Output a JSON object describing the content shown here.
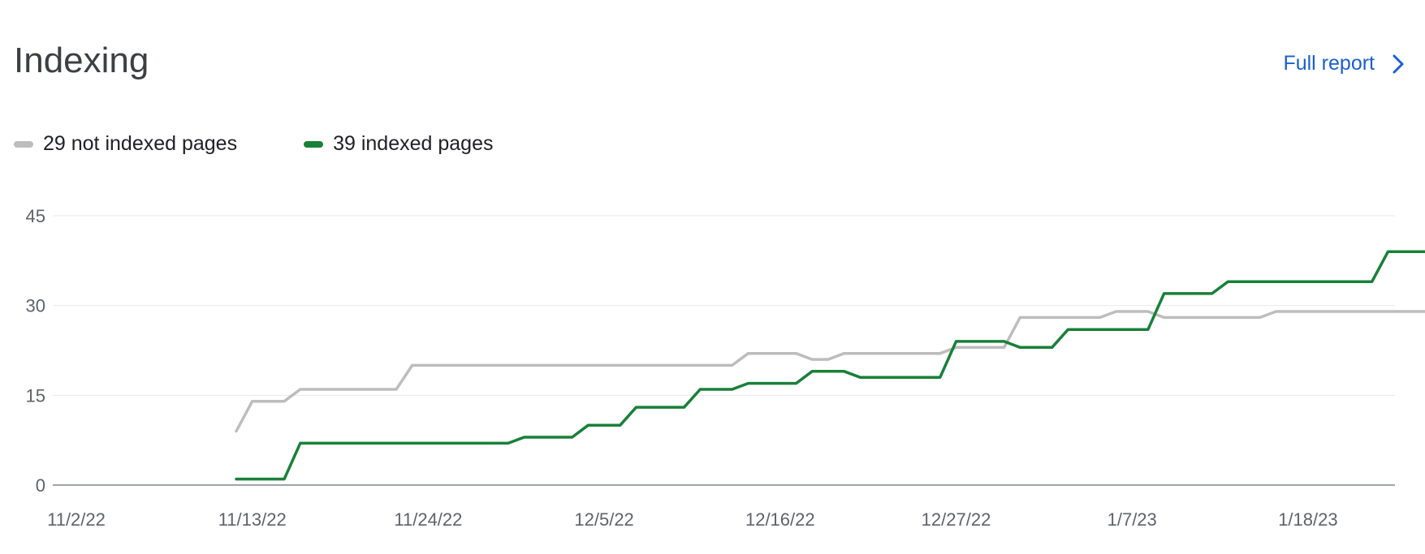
{
  "header": {
    "title": "Indexing",
    "full_report_label": "Full report"
  },
  "legend": [
    {
      "label": "29 not indexed pages",
      "color": "#bdbdbd"
    },
    {
      "label": "39 indexed pages",
      "color": "#188038"
    }
  ],
  "icons": {
    "full_report": "chevron-right-icon"
  },
  "chart_data": {
    "type": "line",
    "x_start": "11/2/22",
    "x_ticks": [
      "11/2/22",
      "11/13/22",
      "11/24/22",
      "12/5/22",
      "12/16/22",
      "12/27/22",
      "1/7/23",
      "1/18/23"
    ],
    "y_ticks": [
      0,
      15,
      30,
      45
    ],
    "ylim": [
      0,
      45
    ],
    "grid": true,
    "legend_position": "top-left",
    "series": [
      {
        "name": "29 not indexed pages",
        "color": "#bdbdbd",
        "points": [
          [
            "11/12/22",
            9
          ],
          [
            "11/13/22",
            14
          ],
          [
            "11/14/22",
            14
          ],
          [
            "11/15/22",
            14
          ],
          [
            "11/16/22",
            16
          ],
          [
            "11/22/22",
            16
          ],
          [
            "11/23/22",
            20
          ],
          [
            "12/13/22",
            20
          ],
          [
            "12/14/22",
            22
          ],
          [
            "12/17/22",
            22
          ],
          [
            "12/18/22",
            21
          ],
          [
            "12/19/22",
            21
          ],
          [
            "12/20/22",
            22
          ],
          [
            "12/26/22",
            22
          ],
          [
            "12/27/22",
            23
          ],
          [
            "12/30/22",
            23
          ],
          [
            "12/31/22",
            28
          ],
          [
            "1/5/23",
            28
          ],
          [
            "1/6/23",
            29
          ],
          [
            "1/8/23",
            29
          ],
          [
            "1/9/23",
            28
          ],
          [
            "1/15/23",
            28
          ],
          [
            "1/16/23",
            29
          ],
          [
            "1/26/23",
            29
          ]
        ]
      },
      {
        "name": "39 indexed pages",
        "color": "#188038",
        "points": [
          [
            "11/12/22",
            1
          ],
          [
            "11/15/22",
            1
          ],
          [
            "11/16/22",
            7
          ],
          [
            "11/29/22",
            7
          ],
          [
            "11/30/22",
            8
          ],
          [
            "12/3/22",
            8
          ],
          [
            "12/4/22",
            10
          ],
          [
            "12/6/22",
            10
          ],
          [
            "12/7/22",
            13
          ],
          [
            "12/10/22",
            13
          ],
          [
            "12/11/22",
            16
          ],
          [
            "12/13/22",
            16
          ],
          [
            "12/14/22",
            17
          ],
          [
            "12/17/22",
            17
          ],
          [
            "12/18/22",
            19
          ],
          [
            "12/20/22",
            19
          ],
          [
            "12/21/22",
            18
          ],
          [
            "12/26/22",
            18
          ],
          [
            "12/27/22",
            24
          ],
          [
            "12/30/22",
            24
          ],
          [
            "12/31/22",
            23
          ],
          [
            "1/2/23",
            23
          ],
          [
            "1/3/23",
            26
          ],
          [
            "1/8/23",
            26
          ],
          [
            "1/9/23",
            32
          ],
          [
            "1/12/23",
            32
          ],
          [
            "1/13/23",
            34
          ],
          [
            "1/22/23",
            34
          ],
          [
            "1/23/23",
            39
          ],
          [
            "1/26/23",
            39
          ]
        ]
      }
    ]
  }
}
